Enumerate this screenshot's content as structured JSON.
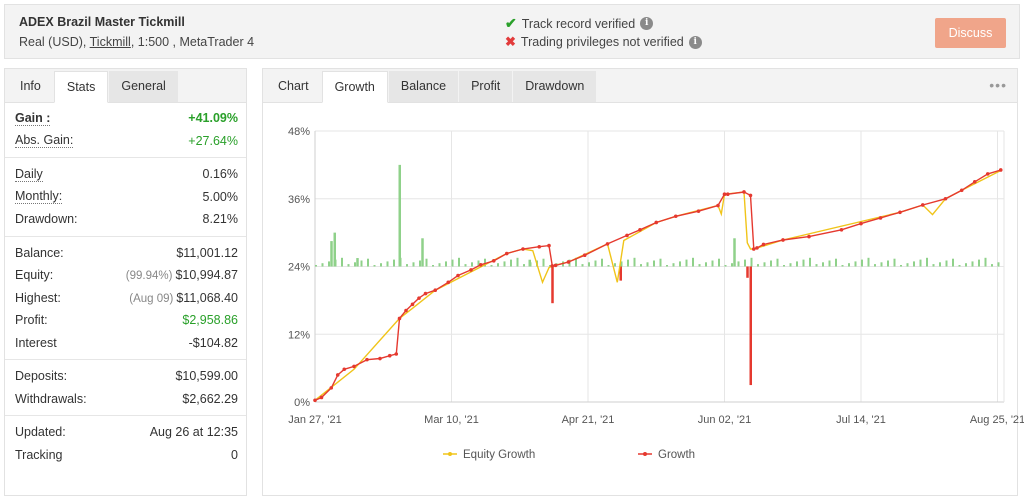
{
  "header": {
    "title": "ADEX Brazil Master Tickmill",
    "sub_prefix": "Real (USD), ",
    "broker": "Tickmill",
    "sub_suffix": ", 1:500 , MetaTrader 4",
    "track_record": "Track record verified",
    "trading_privileges": "Trading privileges not verified",
    "discuss_label": "Discuss"
  },
  "left_tabs": [
    "Info",
    "Stats",
    "General"
  ],
  "stats": {
    "gain_label": "Gain :",
    "gain_value": "+41.09%",
    "abs_gain_label": "Abs. Gain:",
    "abs_gain_value": "+27.64%",
    "daily_label": "Daily",
    "daily_value": "0.16%",
    "monthly_label": "Monthly:",
    "monthly_value": "5.00%",
    "drawdown_label": "Drawdown:",
    "drawdown_value": "8.21%",
    "balance_label": "Balance:",
    "balance_value": "$11,001.12",
    "equity_label": "Equity:",
    "equity_note": "(99.94%)",
    "equity_value": "$10,994.87",
    "highest_label": "Highest:",
    "highest_note": "(Aug 09)",
    "highest_value": "$11,068.40",
    "profit_label": "Profit:",
    "profit_value": "$2,958.86",
    "interest_label": "Interest",
    "interest_value": "-$104.82",
    "deposits_label": "Deposits:",
    "deposits_value": "$10,599.00",
    "withdrawals_label": "Withdrawals:",
    "withdrawals_value": "$2,662.29",
    "updated_label": "Updated:",
    "updated_value": "Aug 26 at 12:35",
    "tracking_label": "Tracking",
    "tracking_value": "0"
  },
  "right_tabs": [
    "Chart",
    "Growth",
    "Balance",
    "Profit",
    "Drawdown"
  ],
  "chart_data": {
    "type": "line",
    "y_ticks": [
      "0%",
      "12%",
      "24%",
      "36%",
      "48%"
    ],
    "ylim": [
      0,
      48
    ],
    "x_ticks": [
      "Jan 27, '21",
      "Mar 10, '21",
      "Apr 21, '21",
      "Jun 02, '21",
      "Jul 14, '21",
      "Aug 25, '21"
    ],
    "xlim": [
      "2021-01-27",
      "2021-08-27"
    ],
    "grid": true,
    "legend_position": "bottom",
    "series": [
      {
        "name": "Growth",
        "color": "#e5392f",
        "x": [
          "2021-01-27",
          "2021-01-29",
          "2021-02-01",
          "2021-02-03",
          "2021-02-05",
          "2021-02-08",
          "2021-02-12",
          "2021-02-16",
          "2021-02-19",
          "2021-02-21",
          "2021-02-22",
          "2021-02-24",
          "2021-02-26",
          "2021-02-28",
          "2021-03-02",
          "2021-03-05",
          "2021-03-09",
          "2021-03-12",
          "2021-03-16",
          "2021-03-19",
          "2021-03-23",
          "2021-03-27",
          "2021-04-01",
          "2021-04-06",
          "2021-04-09",
          "2021-04-10",
          "2021-04-11",
          "2021-04-15",
          "2021-04-20",
          "2021-04-27",
          "2021-05-03",
          "2021-05-07",
          "2021-05-12",
          "2021-05-18",
          "2021-05-25",
          "2021-05-31",
          "2021-06-02",
          "2021-06-03",
          "2021-06-08",
          "2021-06-10",
          "2021-06-11",
          "2021-06-12",
          "2021-06-14",
          "2021-06-20",
          "2021-06-28",
          "2021-07-08",
          "2021-07-14",
          "2021-07-20",
          "2021-07-26",
          "2021-08-02",
          "2021-08-09",
          "2021-08-14",
          "2021-08-18",
          "2021-08-22",
          "2021-08-26"
        ],
        "values": [
          0.3,
          0.8,
          2.5,
          4.8,
          5.8,
          6.3,
          7.5,
          7.7,
          8.2,
          8.5,
          14.8,
          16.2,
          17.3,
          18.4,
          19.2,
          19.8,
          21.2,
          22.4,
          23.4,
          24.3,
          25.0,
          26.3,
          27.1,
          27.5,
          27.7,
          24.1,
          24.2,
          24.8,
          26.0,
          28.0,
          29.5,
          30.5,
          31.8,
          32.9,
          33.8,
          34.8,
          36.8,
          36.8,
          37.2,
          36.6,
          27.1,
          27.3,
          27.9,
          28.7,
          29.3,
          30.5,
          31.6,
          32.6,
          33.6,
          34.9,
          36.0,
          37.5,
          39.0,
          40.4,
          41.1
        ]
      },
      {
        "name": "Equity Growth",
        "color": "#f0c419",
        "x": [
          "2021-01-27",
          "2021-02-08",
          "2021-02-22",
          "2021-02-26",
          "2021-03-05",
          "2021-03-27",
          "2021-04-01",
          "2021-04-04",
          "2021-04-07",
          "2021-04-09",
          "2021-04-10",
          "2021-04-15",
          "2021-04-27",
          "2021-04-30",
          "2021-05-02",
          "2021-05-12",
          "2021-05-18",
          "2021-05-31",
          "2021-06-01",
          "2021-06-02",
          "2021-06-08",
          "2021-06-09",
          "2021-06-10",
          "2021-06-11",
          "2021-06-20",
          "2021-07-26",
          "2021-08-02",
          "2021-08-05",
          "2021-08-09",
          "2021-08-14",
          "2021-08-26"
        ],
        "values": [
          0.3,
          5.8,
          14.8,
          16.6,
          19.8,
          26.3,
          27.1,
          26.8,
          21.2,
          23.8,
          24.1,
          24.8,
          28.0,
          21.2,
          28.6,
          31.8,
          32.9,
          34.8,
          33.3,
          36.8,
          37.2,
          28.2,
          27.1,
          27.1,
          28.7,
          33.6,
          34.9,
          33.2,
          36.0,
          37.5,
          41.0
        ]
      }
    ],
    "daily_bars": {
      "baseline": 24,
      "note": "daily profit bars plotted around the 24% baseline",
      "positive_color": "#8fd18a",
      "negative_color": "#e5392f",
      "x": [
        "2021-02-01",
        "2021-02-02",
        "2021-02-09",
        "2021-02-22",
        "2021-03-01",
        "2021-04-03",
        "2021-04-10",
        "2021-05-01",
        "2021-06-05",
        "2021-06-09",
        "2021-06-10"
      ],
      "values": [
        4.5,
        6.0,
        1.5,
        18.0,
        5.0,
        1.2,
        -6.5,
        -2.5,
        5.0,
        -2.0,
        -21.0
      ]
    }
  }
}
